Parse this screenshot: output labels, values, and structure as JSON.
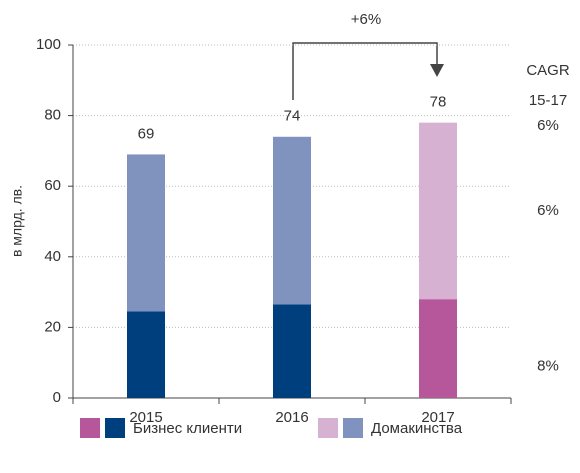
{
  "chart_data": {
    "type": "stacked_bar",
    "y_label": "в млрд. лв.",
    "categories": [
      "2015",
      "2016",
      "2017"
    ],
    "series": [
      {
        "name": "Бизнес клиенти",
        "colors": [
          "#003f7d",
          "#003f7d",
          "#b5579a"
        ],
        "values": [
          24.5,
          26.5,
          28
        ]
      },
      {
        "name": "Домакинства",
        "colors": [
          "#8093bf",
          "#8093bf",
          "#d7b1d2"
        ],
        "values": [
          44.5,
          47.5,
          50
        ]
      }
    ],
    "totals": [
      69,
      74,
      78
    ],
    "ylim": [
      0,
      100
    ],
    "yticks": [
      0,
      20,
      40,
      60,
      80,
      100
    ],
    "grid": true,
    "growth_label": "+6%",
    "cagr": {
      "title": "CAGR",
      "period": "15-17",
      "total": "6%",
      "series": [
        "8%",
        "6%"
      ]
    }
  }
}
